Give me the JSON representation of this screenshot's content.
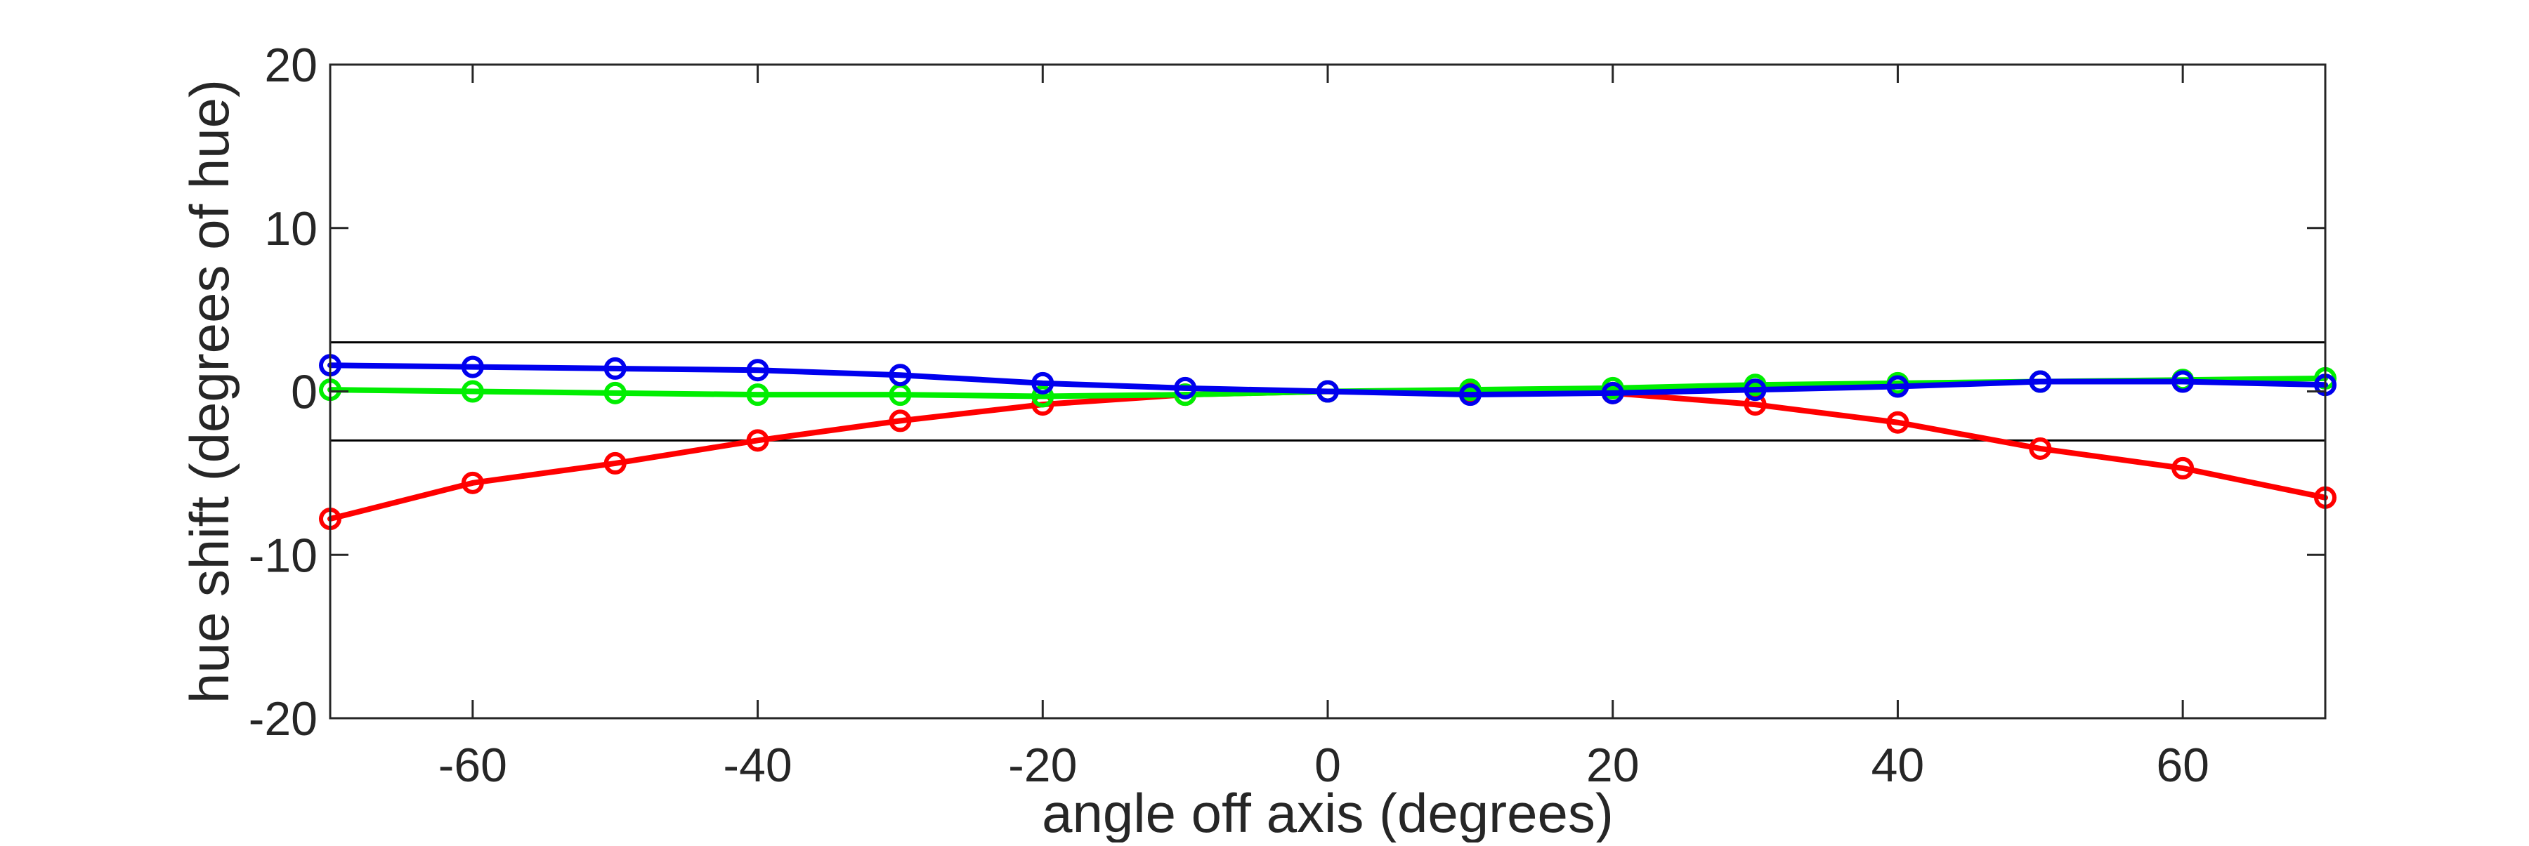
{
  "chart_data": {
    "type": "line",
    "xlabel": "angle off axis (degrees)",
    "ylabel": "hue shift (degrees of hue)",
    "xlim": [
      -70,
      70
    ],
    "ylim": [
      -20,
      20
    ],
    "xticks": [
      -60,
      -40,
      -20,
      0,
      20,
      40,
      60
    ],
    "yticks": [
      -20,
      -10,
      0,
      10,
      20
    ],
    "grid": false,
    "reference_lines": [
      3,
      -3
    ],
    "x": [
      -70,
      -60,
      -50,
      -40,
      -30,
      -20,
      -10,
      0,
      10,
      20,
      30,
      40,
      50,
      60,
      70
    ],
    "series": [
      {
        "color": "#ff0000",
        "values": [
          -7.8,
          -5.6,
          -4.4,
          -3.0,
          -1.8,
          -0.8,
          -0.2,
          0.0,
          -0.1,
          -0.1,
          -0.8,
          -1.9,
          -3.5,
          -4.7,
          -6.5
        ]
      },
      {
        "color": "#00ee00",
        "values": [
          0.1,
          0.0,
          -0.1,
          -0.2,
          -0.2,
          -0.3,
          -0.2,
          0.0,
          0.1,
          0.2,
          0.4,
          0.5,
          0.6,
          0.7,
          0.8
        ]
      },
      {
        "color": "#0000ee",
        "values": [
          1.6,
          1.5,
          1.4,
          1.3,
          1.0,
          0.5,
          0.2,
          0.0,
          -0.2,
          -0.1,
          0.1,
          0.3,
          0.6,
          0.6,
          0.4
        ]
      }
    ]
  }
}
